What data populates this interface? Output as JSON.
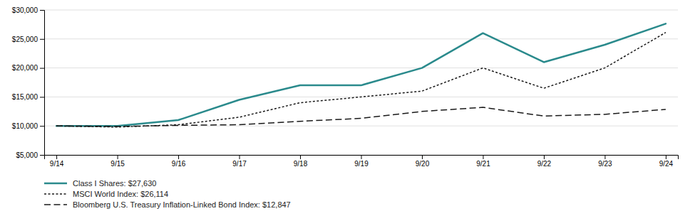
{
  "chart_data": {
    "type": "line",
    "categories": [
      "9/14",
      "9/15",
      "9/16",
      "9/17",
      "9/18",
      "9/19",
      "9/20",
      "9/21",
      "9/22",
      "9/23",
      "9/24"
    ],
    "series": [
      {
        "name": "Class I Shares: $27,630",
        "color": "#2a8a8c",
        "line_style": "solid",
        "values": [
          10000,
          10000,
          11000,
          14500,
          17000,
          17000,
          20000,
          26000,
          21000,
          24000,
          27630
        ]
      },
      {
        "name": "MSCI World Index: $26,114",
        "color": "#1a1a1a",
        "line_style": "dotted",
        "values": [
          10000,
          9800,
          10200,
          11500,
          14000,
          15000,
          16000,
          20000,
          16500,
          20000,
          26114
        ]
      },
      {
        "name": "Bloomberg  U.S. Treasury Inflation-Linked Bond Index: $12,847",
        "color": "#1a1a1a",
        "line_style": "dashed",
        "values": [
          10000,
          9900,
          10100,
          10200,
          10800,
          11300,
          12500,
          13200,
          11700,
          12000,
          12847
        ]
      }
    ],
    "ylim": [
      5000,
      30000
    ],
    "yticks": [
      {
        "value": 5000,
        "label": "$5,000"
      },
      {
        "value": 10000,
        "label": "$10,000"
      },
      {
        "value": 15000,
        "label": "$15,000"
      },
      {
        "value": 20000,
        "label": "$20,000"
      },
      {
        "value": 25000,
        "label": "$25,000"
      },
      {
        "value": 30000,
        "label": "$30,000"
      }
    ],
    "grid": true,
    "legend": "bottom"
  }
}
